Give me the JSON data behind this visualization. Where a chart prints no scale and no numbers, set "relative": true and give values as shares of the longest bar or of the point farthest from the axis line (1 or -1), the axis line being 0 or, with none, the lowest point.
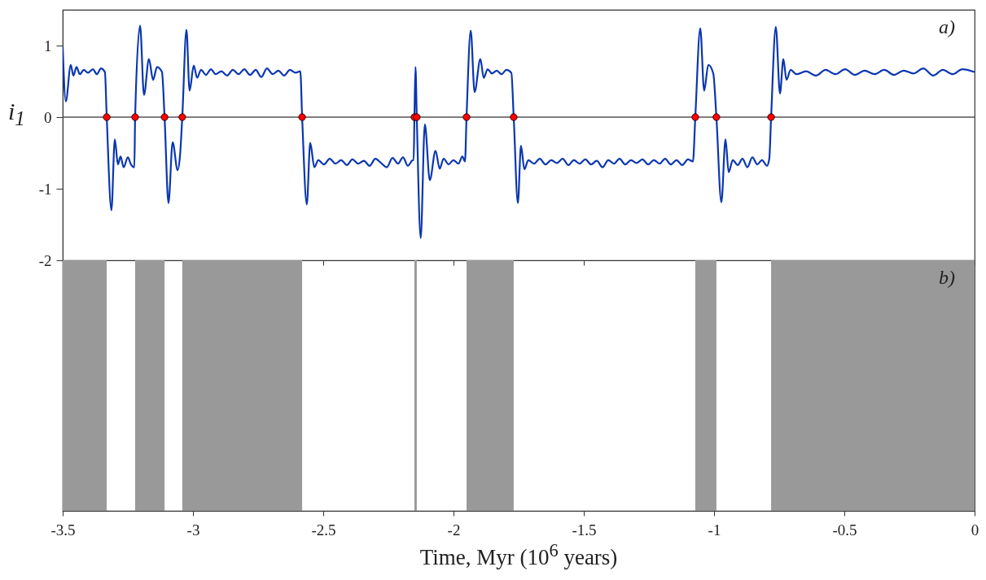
{
  "chart_data": [
    {
      "type": "line",
      "ylabel": "i$_{1}$",
      "annotations": [
        "a)"
      ],
      "xlim": [
        -3.5,
        0
      ],
      "xticks": [
        -3.5,
        -3,
        -2.5,
        -2,
        -1.5,
        -1,
        -0.5,
        0
      ],
      "ylim": [
        -2,
        1.5
      ],
      "yticks": [
        -2,
        -1,
        0,
        1
      ],
      "tick_labels": "y",
      "ref_lines": [
        {
          "axis": "y",
          "value": 0,
          "color": "#555555"
        }
      ],
      "series": [
        {
          "color": "#0a36b0",
          "x": [
            -3.5,
            -3.488,
            -3.469,
            -3.459,
            -3.447,
            -3.434,
            -3.419,
            -3.403,
            -3.384,
            -3.369,
            -3.353,
            -3.338,
            -3.331,
            -3.313,
            -3.3,
            -3.288,
            -3.278,
            -3.266,
            -3.25,
            -3.238,
            -3.225,
            -3.222,
            -3.203,
            -3.188,
            -3.169,
            -3.153,
            -3.138,
            -3.119,
            -3.109,
            -3.094,
            -3.078,
            -3.059,
            -3.05,
            -3.041,
            -3.025,
            -3.013,
            -2.997,
            -2.984,
            -2.969,
            -2.95,
            -2.931,
            -2.913,
            -2.891,
            -2.869,
            -2.847,
            -2.825,
            -2.803,
            -2.781,
            -2.759,
            -2.738,
            -2.716,
            -2.694,
            -2.672,
            -2.65,
            -2.628,
            -2.606,
            -2.588,
            -2.581,
            -2.563,
            -2.55,
            -2.534,
            -2.519,
            -2.497,
            -2.475,
            -2.453,
            -2.431,
            -2.409,
            -2.388,
            -2.366,
            -2.344,
            -2.322,
            -2.3,
            -2.278,
            -2.256,
            -2.234,
            -2.213,
            -2.194,
            -2.175,
            -2.156,
            -2.153,
            -2.15,
            -2.146,
            -2.141,
            -2.126,
            -2.11,
            -2.091,
            -2.069,
            -2.053,
            -2.038,
            -2.019,
            -2,
            -1.981,
            -1.966,
            -1.956,
            -1.95,
            -1.934,
            -1.919,
            -1.897,
            -1.884,
            -1.869,
            -1.853,
            -1.834,
            -1.816,
            -1.797,
            -1.778,
            -1.769,
            -1.753,
            -1.741,
            -1.728,
            -1.713,
            -1.691,
            -1.669,
            -1.647,
            -1.625,
            -1.603,
            -1.581,
            -1.559,
            -1.538,
            -1.516,
            -1.494,
            -1.472,
            -1.45,
            -1.428,
            -1.406,
            -1.384,
            -1.363,
            -1.341,
            -1.319,
            -1.297,
            -1.275,
            -1.253,
            -1.231,
            -1.209,
            -1.188,
            -1.166,
            -1.144,
            -1.122,
            -1.1,
            -1.081,
            -1.072,
            -1.053,
            -1.038,
            -1.022,
            -1.003,
            -0.991,
            -0.972,
            -0.956,
            -0.944,
            -0.928,
            -0.909,
            -0.891,
            -0.872,
            -0.853,
            -0.834,
            -0.816,
            -0.797,
            -0.788,
            -0.781,
            -0.763,
            -0.747,
            -0.734,
            -0.722,
            -0.706,
            -0.684,
            -0.647,
            -0.609,
            -0.572,
            -0.534,
            -0.497,
            -0.459,
            -0.422,
            -0.384,
            -0.347,
            -0.309,
            -0.272,
            -0.234,
            -0.197,
            -0.159,
            -0.122,
            -0.084,
            -0.047,
            0
          ],
          "values": [
            0.99,
            0.22,
            0.73,
            0.58,
            0.7,
            0.6,
            0.66,
            0.62,
            0.67,
            0.6,
            0.68,
            0.63,
            0,
            -1.3,
            -0.31,
            -0.66,
            -0.55,
            -0.7,
            -0.56,
            -0.66,
            -0.7,
            0,
            1.28,
            0.31,
            0.81,
            0.52,
            0.7,
            0.63,
            0,
            -1.2,
            -0.35,
            -0.74,
            -0.55,
            0,
            1.22,
            0.37,
            0.72,
            0.55,
            0.66,
            0.59,
            0.67,
            0.6,
            0.64,
            0.58,
            0.66,
            0.6,
            0.67,
            0.59,
            0.66,
            0.56,
            0.68,
            0.6,
            0.65,
            0.58,
            0.66,
            0.62,
            0.64,
            0,
            -1.22,
            -0.36,
            -0.7,
            -0.6,
            -0.66,
            -0.58,
            -0.65,
            -0.6,
            -0.67,
            -0.59,
            -0.65,
            -0.61,
            -0.68,
            -0.58,
            -0.64,
            -0.7,
            -0.57,
            -0.65,
            -0.56,
            -0.68,
            -0.6,
            -0.6,
            0,
            0.7,
            0,
            -1.69,
            -0.1,
            -0.88,
            -0.47,
            -0.72,
            -0.58,
            -0.66,
            -0.6,
            -0.65,
            -0.55,
            -0.62,
            0,
            1.21,
            0.35,
            0.81,
            0.55,
            0.67,
            0.61,
            0.65,
            0.6,
            0.66,
            0.62,
            0,
            -1.2,
            -0.4,
            -0.73,
            -0.6,
            -0.65,
            -0.58,
            -0.66,
            -0.6,
            -0.64,
            -0.58,
            -0.67,
            -0.6,
            -0.65,
            -0.59,
            -0.66,
            -0.61,
            -0.7,
            -0.6,
            -0.65,
            -0.58,
            -0.66,
            -0.6,
            -0.64,
            -0.59,
            -0.66,
            -0.6,
            -0.65,
            -0.58,
            -0.66,
            -0.6,
            -0.67,
            -0.59,
            -0.62,
            0,
            1.24,
            0.37,
            0.73,
            0.61,
            0,
            -1.19,
            -0.31,
            -0.77,
            -0.6,
            -0.67,
            -0.58,
            -0.7,
            -0.56,
            -0.66,
            -0.6,
            -0.68,
            -0.58,
            0,
            1.26,
            0.33,
            0.81,
            0.52,
            0.66,
            0.6,
            0.64,
            0.58,
            0.66,
            0.6,
            0.67,
            0.59,
            0.65,
            0.6,
            0.66,
            0.59,
            0.65,
            0.61,
            0.68,
            0.58,
            0.66,
            0.6,
            0.67,
            0.63
          ]
        },
        {
          "type": "scatter",
          "color": "#ff0000",
          "marker": "circle",
          "x": [
            -3.331,
            -3.222,
            -3.109,
            -3.041,
            -2.581,
            -2.15,
            -2.141,
            -1.95,
            -1.769,
            -1.072,
            -0.991,
            -0.781
          ],
          "values": [
            0,
            0,
            0,
            0,
            0,
            0,
            0,
            0,
            0,
            0,
            0,
            0
          ]
        }
      ]
    },
    {
      "type": "area",
      "relative": true,
      "xlabel": "Time, Myr (10$^{6}$ years)",
      "annotations": [
        "b)"
      ],
      "xlim": [
        -3.5,
        0
      ],
      "xticks": [
        -3.5,
        -3,
        -2.5,
        -2,
        -1.5,
        -1,
        -0.5,
        0
      ],
      "tick_labels": "x",
      "series": [
        {
          "color": "#999999",
          "x": [
            -3.5,
            -3.331,
            -3.331,
            -3.222,
            -3.222,
            -3.109,
            -3.109,
            -3.041,
            -3.041,
            -2.581,
            -2.581,
            -2.15,
            -2.15,
            -2.141,
            -2.141,
            -1.95,
            -1.95,
            -1.769,
            -1.769,
            -1.072,
            -1.072,
            -0.991,
            -0.991,
            -0.781,
            -0.781,
            0
          ],
          "values": [
            1,
            1,
            0,
            0,
            1,
            1,
            0,
            0,
            1,
            1,
            0,
            0,
            1,
            1,
            0,
            0,
            1,
            1,
            0,
            0,
            1,
            1,
            0,
            0,
            1,
            1
          ]
        }
      ]
    }
  ]
}
